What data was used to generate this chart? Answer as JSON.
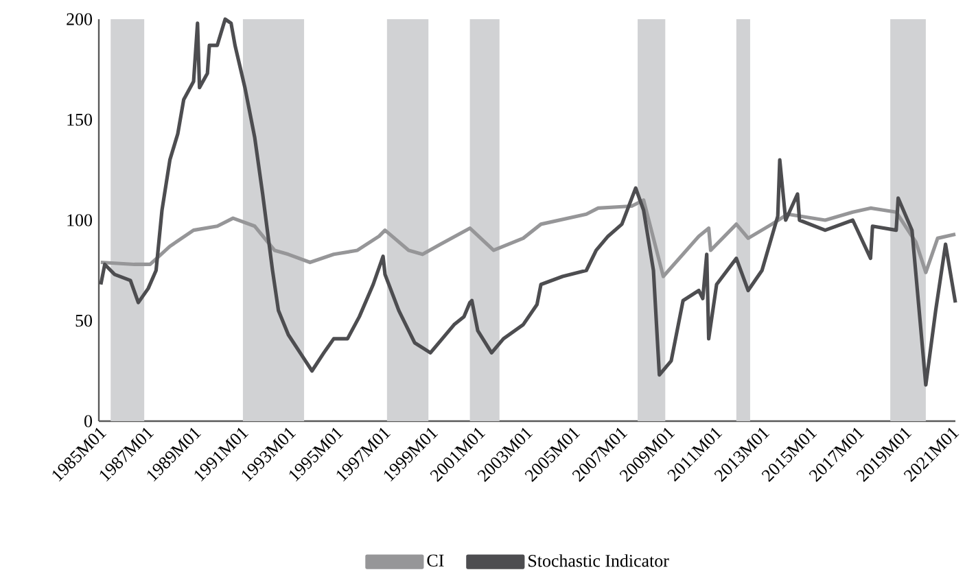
{
  "chart_data": {
    "type": "line",
    "xlim": [
      "1985-01",
      "2021-03"
    ],
    "ylim": [
      0,
      200
    ],
    "xticks": [
      {
        "value": "1985-01",
        "label": "1985M01"
      },
      {
        "value": "1987-01",
        "label": "1987M01"
      },
      {
        "value": "1989-01",
        "label": "1989M01"
      },
      {
        "value": "1991-01",
        "label": "1991M01"
      },
      {
        "value": "1993-01",
        "label": "1993M01"
      },
      {
        "value": "1995-01",
        "label": "1995M01"
      },
      {
        "value": "1997-01",
        "label": "1997M01"
      },
      {
        "value": "1999-01",
        "label": "1999M01"
      },
      {
        "value": "2001-01",
        "label": "2001M01"
      },
      {
        "value": "2003-01",
        "label": "2003M01"
      },
      {
        "value": "2005-01",
        "label": "2005M01"
      },
      {
        "value": "2007-01",
        "label": "2007M01"
      },
      {
        "value": "2009-01",
        "label": "2009M01"
      },
      {
        "value": "2011-01",
        "label": "2011M01"
      },
      {
        "value": "2013-01",
        "label": "2013M01"
      },
      {
        "value": "2015-01",
        "label": "2015M01"
      },
      {
        "value": "2017-01",
        "label": "2017M01"
      },
      {
        "value": "2019-01",
        "label": "2019M01"
      },
      {
        "value": "2021-01",
        "label": "2021M01"
      }
    ],
    "yticks": [
      0,
      50,
      100,
      150,
      200
    ],
    "legend": "bottom",
    "bands": [
      {
        "axis": "x",
        "from": "1985-07",
        "to": "1986-12",
        "color": "#d1d2d4"
      },
      {
        "axis": "x",
        "from": "1991-02",
        "to": "1993-09",
        "color": "#d1d2d4"
      },
      {
        "axis": "x",
        "from": "1997-03",
        "to": "1998-12",
        "color": "#d1d2d4"
      },
      {
        "axis": "x",
        "from": "2000-09",
        "to": "2001-12",
        "color": "#d1d2d4"
      },
      {
        "axis": "x",
        "from": "2007-10",
        "to": "2008-12",
        "color": "#d1d2d4"
      },
      {
        "axis": "x",
        "from": "2011-12",
        "to": "2012-07",
        "color": "#d1d2d4"
      },
      {
        "axis": "x",
        "from": "2018-06",
        "to": "2019-12",
        "color": "#d1d2d4"
      }
    ],
    "series": [
      {
        "name": "CI",
        "color": "#969698",
        "x": [
          "1985-02",
          "1986-07",
          "1987-03",
          "1988-01",
          "1989-01",
          "1990-01",
          "1990-09",
          "1991-08",
          "1992-06",
          "1993-01",
          "1993-12",
          "1994-12",
          "1995-12",
          "1996-11",
          "1997-02",
          "1998-02",
          "1998-09",
          "1999-06",
          "2000-09",
          "2001-09",
          "2002-12",
          "2003-09",
          "2005-08",
          "2006-02",
          "2007-07",
          "2008-01",
          "2008-06",
          "2008-11",
          "2009-08",
          "2010-05",
          "2010-10",
          "2010-11",
          "2011-12",
          "2012-06",
          "2013-06",
          "2014-02",
          "2015-09",
          "2016-11",
          "2017-08",
          "2018-09",
          "2019-07",
          "2019-12",
          "2020-06",
          "2021-03"
        ],
        "values": [
          79,
          78,
          78,
          87,
          95,
          97,
          101,
          97,
          85,
          83,
          79,
          83,
          85,
          92,
          95,
          85,
          83,
          88,
          96,
          85,
          91,
          98,
          103,
          106,
          107,
          110,
          91,
          72,
          82,
          92,
          96,
          85,
          98,
          91,
          98,
          103,
          100,
          104,
          106,
          104,
          89,
          74,
          91,
          93
        ]
      },
      {
        "name": "Stochastic Indicator",
        "color": "#4d4d50",
        "x": [
          "1985-02",
          "1985-04",
          "1985-09",
          "1986-05",
          "1986-09",
          "1987-02",
          "1987-06",
          "1987-09",
          "1988-01",
          "1988-05",
          "1988-08",
          "1989-01",
          "1989-03",
          "1989-04",
          "1989-08",
          "1989-09",
          "1990-01",
          "1990-05",
          "1990-08",
          "1990-10",
          "1991-03",
          "1991-08",
          "1991-12",
          "1992-05",
          "1992-08",
          "1993-01",
          "1993-07",
          "1994-01",
          "1994-07",
          "1994-12",
          "1995-07",
          "1996-01",
          "1996-08",
          "1997-01",
          "1997-02",
          "1997-09",
          "1998-05",
          "1999-01",
          "1999-07",
          "2000-01",
          "2000-06",
          "2000-09",
          "2000-10",
          "2001-01",
          "2001-08",
          "2002-02",
          "2002-12",
          "2003-07",
          "2003-09",
          "2004-08",
          "2005-08",
          "2006-01",
          "2006-07",
          "2007-02",
          "2007-09",
          "2008-01",
          "2008-06",
          "2008-09",
          "2009-03",
          "2009-09",
          "2010-05",
          "2010-07",
          "2010-09",
          "2010-10",
          "2011-02",
          "2011-12",
          "2012-06",
          "2013-01",
          "2013-09",
          "2013-10",
          "2014-01",
          "2014-07",
          "2014-08",
          "2015-09",
          "2016-11",
          "2017-08",
          "2017-09",
          "2018-09",
          "2018-10",
          "2019-05",
          "2019-07",
          "2019-12",
          "2020-05",
          "2020-10",
          "2021-03"
        ],
        "values": [
          68,
          78,
          73,
          70,
          59,
          66,
          75,
          105,
          130,
          143,
          160,
          169,
          198,
          166,
          173,
          187,
          187,
          200,
          198,
          187,
          166,
          141,
          113,
          75,
          55,
          43,
          34,
          25,
          34,
          41,
          41,
          52,
          68,
          82,
          73,
          55,
          39,
          34,
          41,
          48,
          52,
          59,
          60,
          45,
          34,
          41,
          48,
          58,
          68,
          72,
          75,
          85,
          92,
          98,
          116,
          105,
          75,
          23,
          30,
          60,
          65,
          61,
          83,
          41,
          68,
          81,
          65,
          75,
          102,
          130,
          100,
          113,
          100,
          95,
          100,
          81,
          97,
          95,
          111,
          95,
          73,
          18,
          55,
          88,
          59
        ]
      }
    ]
  }
}
